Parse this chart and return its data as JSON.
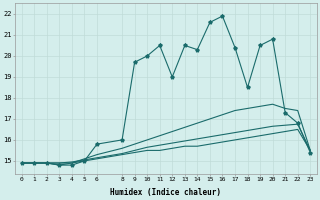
{
  "xlabel": "Humidex (Indice chaleur)",
  "ylabel": "",
  "bg_color": "#d4eeec",
  "line_color": "#1a6b6b",
  "grid_color": "#c0dcd8",
  "xlim": [
    -0.5,
    23.5
  ],
  "ylim": [
    14.4,
    22.5
  ],
  "xticks": [
    0,
    1,
    2,
    3,
    4,
    5,
    6,
    8,
    9,
    10,
    11,
    12,
    13,
    14,
    15,
    16,
    17,
    18,
    19,
    20,
    21,
    22,
    23
  ],
  "yticks": [
    15,
    16,
    17,
    18,
    19,
    20,
    21,
    22
  ],
  "line1_x": [
    0,
    1,
    2,
    3,
    4,
    5,
    6,
    8,
    9,
    10,
    11,
    12,
    13,
    14,
    15,
    16,
    17,
    18,
    19,
    20,
    21,
    22,
    23
  ],
  "line1_y": [
    14.9,
    14.9,
    14.9,
    14.8,
    14.8,
    15.0,
    15.8,
    16.0,
    19.7,
    20.0,
    20.5,
    19.0,
    20.5,
    20.3,
    21.6,
    21.9,
    20.4,
    18.5,
    20.5,
    20.8,
    17.3,
    16.8,
    15.4
  ],
  "line2_x": [
    0,
    1,
    2,
    3,
    4,
    5,
    6,
    8,
    9,
    10,
    11,
    12,
    13,
    14,
    15,
    16,
    17,
    18,
    19,
    20,
    21,
    22,
    23
  ],
  "line2_y": [
    14.9,
    14.9,
    14.9,
    14.9,
    14.9,
    15.0,
    15.1,
    15.3,
    15.4,
    15.5,
    15.5,
    15.6,
    15.7,
    15.7,
    15.8,
    15.9,
    16.0,
    16.1,
    16.2,
    16.3,
    16.4,
    16.5,
    15.5
  ],
  "line3_x": [
    0,
    1,
    2,
    3,
    4,
    5,
    6,
    8,
    9,
    10,
    11,
    12,
    13,
    14,
    15,
    16,
    17,
    18,
    19,
    20,
    21,
    22,
    23
  ],
  "line3_y": [
    14.9,
    14.9,
    14.9,
    14.8,
    14.9,
    15.1,
    15.3,
    15.6,
    15.8,
    16.0,
    16.2,
    16.4,
    16.6,
    16.8,
    17.0,
    17.2,
    17.4,
    17.5,
    17.6,
    17.7,
    17.5,
    17.4,
    15.5
  ],
  "line4_x": [
    0,
    1,
    2,
    3,
    4,
    5,
    6,
    8,
    9,
    10,
    11,
    12,
    13,
    14,
    15,
    16,
    17,
    18,
    19,
    20,
    21,
    22,
    23
  ],
  "line4_y": [
    14.9,
    14.9,
    14.9,
    14.9,
    14.95,
    15.05,
    15.15,
    15.35,
    15.5,
    15.65,
    15.75,
    15.85,
    15.95,
    16.05,
    16.15,
    16.25,
    16.35,
    16.45,
    16.55,
    16.65,
    16.7,
    16.75,
    15.5
  ]
}
